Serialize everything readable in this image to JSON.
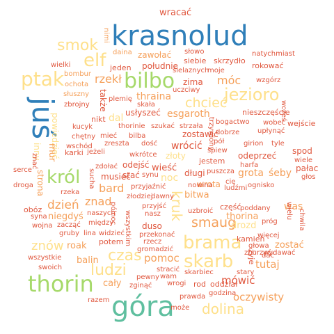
{
  "palette": {
    "blue": "#2f7fb9",
    "teal": "#5fbf9f",
    "green": "#a6d96a",
    "yellow": "#fee08b",
    "orange": "#f5a05a",
    "red": "#e0573e"
  },
  "words": [
    {
      "text": "krasnolud",
      "color": "blue"
    },
    {
      "text": "góra",
      "color": "teal"
    },
    {
      "text": "juś",
      "color": "blue"
    },
    {
      "text": "thorin",
      "color": "green"
    },
    {
      "text": "bilbo",
      "color": "green"
    },
    {
      "text": "król",
      "color": "green"
    },
    {
      "text": "ptak",
      "color": "yellow"
    },
    {
      "text": "elf",
      "color": "yellow"
    },
    {
      "text": "smok",
      "color": "yellow"
    },
    {
      "text": "jezioro",
      "color": "yellow"
    },
    {
      "text": "brama",
      "color": "yellow"
    },
    {
      "text": "skarb",
      "color": "yellow"
    },
    {
      "text": "czas",
      "color": "yellow"
    },
    {
      "text": "ludzi",
      "color": "yellow"
    },
    {
      "text": "dolina",
      "color": "yellow"
    },
    {
      "text": "smaug",
      "color": "orange"
    },
    {
      "text": "kruk",
      "color": "yellow"
    },
    {
      "text": "chcieć",
      "color": "yellow"
    },
    {
      "text": "rzekł",
      "color": "orange"
    },
    {
      "text": "móc",
      "color": "orange"
    },
    {
      "text": "znów",
      "color": "yellow"
    },
    {
      "text": "dzień",
      "color": "orange"
    },
    {
      "text": "znad",
      "color": "orange"
    },
    {
      "text": "bard",
      "color": "orange"
    },
    {
      "text": "pomoc",
      "color": "orange"
    },
    {
      "text": "mówić",
      "color": "red"
    },
    {
      "text": "tutaj",
      "color": "orange"
    },
    {
      "text": "oczywisty",
      "color": "orange"
    },
    {
      "text": "wracać",
      "color": "red"
    },
    {
      "text": "nimi",
      "color": "orange"
    },
    {
      "text": "zawołać",
      "color": "orange"
    },
    {
      "text": "słowo",
      "color": "red"
    },
    {
      "text": "natychmiast",
      "color": "red"
    },
    {
      "text": "daina",
      "color": "orange"
    },
    {
      "text": "wielki",
      "color": "red"
    },
    {
      "text": "jeden",
      "color": "red"
    },
    {
      "text": "południe",
      "color": "red"
    },
    {
      "text": "siebie",
      "color": "red"
    },
    {
      "text": "skrzydło",
      "color": "red"
    },
    {
      "text": "rokować",
      "color": "red"
    },
    {
      "text": "bombur",
      "color": "orange"
    },
    {
      "text": "ochota",
      "color": "orange"
    },
    {
      "text": "słuszny",
      "color": "orange"
    },
    {
      "text": "zbrojny",
      "color": "red"
    },
    {
      "text": "także",
      "color": "red"
    },
    {
      "text": "ślelaznych",
      "color": "red"
    },
    {
      "text": "moje",
      "color": "red"
    },
    {
      "text": "wzgórz",
      "color": "red"
    },
    {
      "text": "zima",
      "color": "red"
    },
    {
      "text": "uczciwy",
      "color": "red"
    },
    {
      "text": "plemię",
      "color": "red"
    },
    {
      "text": "thraina",
      "color": "orange"
    },
    {
      "text": "skała",
      "color": "red"
    },
    {
      "text": "usłyszeć",
      "color": "red"
    },
    {
      "text": "esgaroth",
      "color": "orange"
    },
    {
      "text": "nieszczęście",
      "color": "red"
    },
    {
      "text": "wobec",
      "color": "red"
    },
    {
      "text": "wejście",
      "color": "red"
    },
    {
      "text": "wcześ",
      "color": "red"
    },
    {
      "text": "nikt",
      "color": "red"
    },
    {
      "text": "dal",
      "color": "yellow"
    },
    {
      "text": "thorinie",
      "color": "red"
    },
    {
      "text": "szukać",
      "color": "red"
    },
    {
      "text": "strzała",
      "color": "red"
    },
    {
      "text": "trzywiony",
      "color": "red"
    },
    {
      "text": "bogactwo",
      "color": "red"
    },
    {
      "text": "upłynąć",
      "color": "red"
    },
    {
      "text": "kucyk",
      "color": "red"
    },
    {
      "text": "mieć",
      "color": "red"
    },
    {
      "text": "bilba",
      "color": "red"
    },
    {
      "text": "zostawić",
      "color": "red"
    },
    {
      "text": "dobrze",
      "color": "red"
    },
    {
      "text": "chętny",
      "color": "red"
    },
    {
      "text": "wschód",
      "color": "red"
    },
    {
      "text": "zreszta",
      "color": "red"
    },
    {
      "text": "dość",
      "color": "red"
    },
    {
      "text": "złoty",
      "color": "yellow"
    },
    {
      "text": "pół",
      "color": "red"
    },
    {
      "text": "girion",
      "color": "red"
    },
    {
      "text": "tyle",
      "color": "red"
    },
    {
      "text": "powiedzieć",
      "color": "yellow"
    },
    {
      "text": "wrócić",
      "color": "red"
    },
    {
      "text": "karki",
      "color": "red"
    },
    {
      "text": "jeżeli",
      "color": "red"
    },
    {
      "text": "wkrótce",
      "color": "red"
    },
    {
      "text": "śpiew",
      "color": "red"
    },
    {
      "text": "spod",
      "color": "red"
    },
    {
      "text": "inny",
      "color": "yellow"
    },
    {
      "text": "znać",
      "color": "red"
    },
    {
      "text": "mur",
      "color": "orange"
    },
    {
      "text": "jestem",
      "color": "red"
    },
    {
      "text": "odeprzeć",
      "color": "red"
    },
    {
      "text": "wiele",
      "color": "red"
    },
    {
      "text": "serce",
      "color": "red"
    },
    {
      "text": "odejść",
      "color": "red"
    },
    {
      "text": "zdołać",
      "color": "red"
    },
    {
      "text": "wieść",
      "color": "red"
    },
    {
      "text": "harfa",
      "color": "red"
    },
    {
      "text": "pałac",
      "color": "red"
    },
    {
      "text": "musieć",
      "color": "red"
    },
    {
      "text": "stać",
      "color": "red"
    },
    {
      "text": "synu",
      "color": "red"
    },
    {
      "text": "noc",
      "color": "yellow"
    },
    {
      "text": "długi",
      "color": "red"
    },
    {
      "text": "puszcza",
      "color": "red"
    },
    {
      "text": "grota",
      "color": "orange"
    },
    {
      "text": "śeby",
      "color": "orange"
    },
    {
      "text": "głos",
      "color": "red"
    },
    {
      "text": "droga",
      "color": "red"
    },
    {
      "text": "strona",
      "color": "orange"
    },
    {
      "text": "sucha",
      "color": "red"
    },
    {
      "text": "przyjaźnić",
      "color": "red"
    },
    {
      "text": "wrota",
      "color": "orange"
    },
    {
      "text": "ludźmi",
      "color": "red"
    },
    {
      "text": "ognisko",
      "color": "red"
    },
    {
      "text": "cię",
      "color": "red"
    },
    {
      "text": "rzeka",
      "color": "red"
    },
    {
      "text": "złodziej",
      "color": "red"
    },
    {
      "text": "dawny",
      "color": "red"
    },
    {
      "text": "bitwa",
      "color": "orange"
    },
    {
      "text": "was",
      "color": "orange"
    },
    {
      "text": "obóz",
      "color": "red"
    },
    {
      "text": "niegdyś",
      "color": "orange"
    },
    {
      "text": "naszych",
      "color": "red"
    },
    {
      "text": "przyjść",
      "color": "red"
    },
    {
      "text": "uzbroić",
      "color": "red"
    },
    {
      "text": "część",
      "color": "red"
    },
    {
      "text": "poddany",
      "color": "red"
    },
    {
      "text": "wielu",
      "color": "red"
    },
    {
      "text": "syna",
      "color": "red"
    },
    {
      "text": "północ",
      "color": "red"
    },
    {
      "text": "nasz",
      "color": "red"
    },
    {
      "text": "thorina",
      "color": "orange"
    },
    {
      "text": "wojna",
      "color": "red"
    },
    {
      "text": "zacząć",
      "color": "red"
    },
    {
      "text": "między",
      "color": "red"
    },
    {
      "text": "drozd",
      "color": "yellow"
    },
    {
      "text": "próg",
      "color": "red"
    },
    {
      "text": "chwila",
      "color": "red"
    },
    {
      "text": "gruby",
      "color": "red"
    },
    {
      "text": "lina",
      "color": "red"
    },
    {
      "text": "widzieć",
      "color": "red"
    },
    {
      "text": "duso",
      "color": "red"
    },
    {
      "text": "przekonać",
      "color": "red"
    },
    {
      "text": "kamień",
      "color": "red"
    },
    {
      "text": "więcej",
      "color": "red"
    },
    {
      "text": "wszystkim",
      "color": "red"
    },
    {
      "text": "roak",
      "color": "orange"
    },
    {
      "text": "potem",
      "color": "red"
    },
    {
      "text": "rzecz",
      "color": "red"
    },
    {
      "text": "gromadzić",
      "color": "red"
    },
    {
      "text": "głowa",
      "color": "red"
    },
    {
      "text": "zostać",
      "color": "orange"
    },
    {
      "text": "wszystkie",
      "color": "red"
    },
    {
      "text": "balin",
      "color": "orange"
    },
    {
      "text": "zburzyć",
      "color": "red"
    },
    {
      "text": "wydawać",
      "color": "red"
    },
    {
      "text": "swoich",
      "color": "red"
    },
    {
      "text": "dać",
      "color": "red"
    },
    {
      "text": "żyje",
      "color": "red"
    },
    {
      "text": "cały",
      "color": "orange"
    },
    {
      "text": "stracić",
      "color": "red"
    },
    {
      "text": "skarbiec",
      "color": "red"
    },
    {
      "text": "stary",
      "color": "red"
    },
    {
      "text": "pewny",
      "color": "red"
    },
    {
      "text": "wam",
      "color": "red"
    },
    {
      "text": "zginąć",
      "color": "red"
    },
    {
      "text": "wrogi",
      "color": "red"
    },
    {
      "text": "rod",
      "color": "red"
    },
    {
      "text": "oddział",
      "color": "red"
    },
    {
      "text": "razem",
      "color": "red"
    },
    {
      "text": "prawda",
      "color": "red"
    },
    {
      "text": "godzina",
      "color": "red"
    },
    {
      "text": "może",
      "color": "red"
    },
    {
      "text": "nowina",
      "color": "red"
    }
  ]
}
